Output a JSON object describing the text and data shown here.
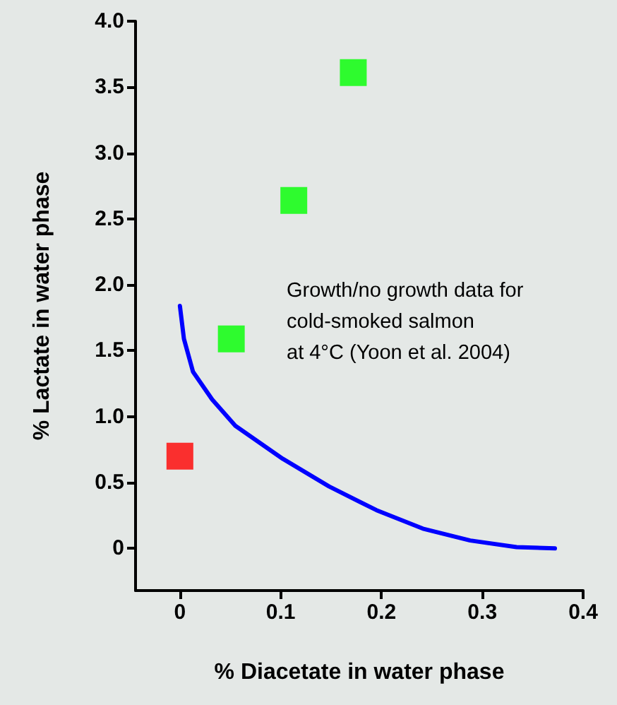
{
  "chart_data": {
    "type": "scatter",
    "xlabel": "% Diacetate in water phase",
    "ylabel": "% Lactate in water phase",
    "xlim": [
      -0.044,
      0.4
    ],
    "xticks": [
      0,
      0.1,
      0.2,
      0.3,
      0.4
    ],
    "ylim": [
      -0.32,
      4.0
    ],
    "yticks": [
      0,
      {
        "value": 0.5,
        "label": "0.5"
      },
      {
        "value": 1,
        "label": "1.0"
      },
      {
        "value": 1.5,
        "label": "1.5"
      },
      {
        "value": 2,
        "label": "2.0"
      },
      {
        "value": 2.5,
        "label": "2.5"
      },
      {
        "value": 3,
        "label": "3.0"
      },
      {
        "value": 3.5,
        "label": "3.5"
      },
      {
        "value": 4,
        "label": "4.0"
      }
    ],
    "marker": "square",
    "grid": false,
    "annotations": [
      "Growth/no growth data for\ncold-smoked salmon\nat 4°C (Yoon et al. 2004)"
    ],
    "series": [
      {
        "color": "#ff0000",
        "x": [
          0
        ],
        "values": [
          0.7
        ]
      },
      {
        "color": "#00ff00",
        "x": [
          0.051,
          0.113,
          0.172
        ],
        "values": [
          1.59,
          2.64,
          3.61
        ]
      },
      {
        "type": "line",
        "color": "#0000ff",
        "marker": "none",
        "line_style": "solid",
        "x": [
          0,
          0.004,
          0.013,
          0.032,
          0.055,
          0.102,
          0.148,
          0.195,
          0.241,
          0.288,
          0.334,
          0.372
        ],
        "values": [
          1.84,
          1.59,
          1.34,
          1.13,
          0.93,
          0.68,
          0.47,
          0.29,
          0.15,
          0.06,
          0.01,
          0
        ]
      }
    ]
  }
}
